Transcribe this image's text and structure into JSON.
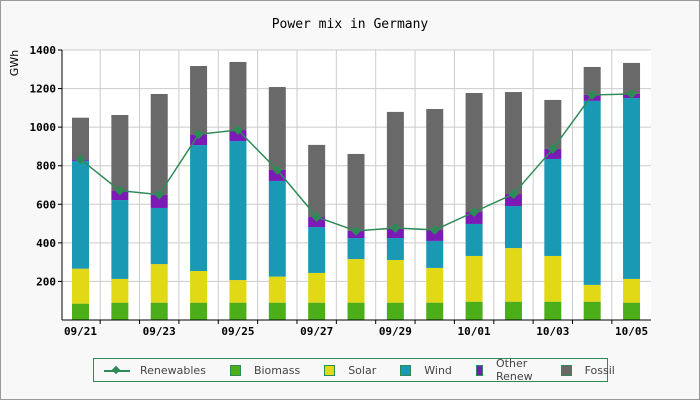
{
  "chart_data": {
    "type": "bar",
    "stacked": true,
    "title": "Power mix in Germany",
    "xlabel": "",
    "ylabel": "GWh",
    "ylim": [
      0,
      1400
    ],
    "yticks": [
      200,
      400,
      600,
      800,
      1000,
      1200,
      1400
    ],
    "categories": [
      "09/21",
      "09/22",
      "09/23",
      "09/24",
      "09/25",
      "09/26",
      "09/27",
      "09/28",
      "09/29",
      "09/30",
      "10/01",
      "10/02",
      "10/03",
      "10/04",
      "10/05"
    ],
    "xtick_labels": [
      "09/21",
      "09/23",
      "09/25",
      "09/27",
      "09/29",
      "10/01",
      "10/03",
      "10/05"
    ],
    "series": [
      {
        "name": "Biomass",
        "color": "#4caf1a",
        "values": [
          85,
          90,
          90,
          90,
          90,
          90,
          90,
          90,
          90,
          90,
          95,
          95,
          95,
          95,
          90
        ]
      },
      {
        "name": "Solar",
        "color": "#e2d916",
        "values": [
          181,
          123,
          200,
          164,
          117,
          135,
          154,
          226,
          221,
          180,
          237,
          278,
          237,
          87,
          123
        ]
      },
      {
        "name": "Wind",
        "color": "#1a99b5",
        "values": [
          559,
          409,
          291,
          653,
          721,
          496,
          238,
          109,
          114,
          140,
          166,
          218,
          503,
          954,
          938
        ]
      },
      {
        "name": "Other Renew",
        "color": "#7b1ab5",
        "values": [
          8,
          49,
          69,
          56,
          57,
          57,
          52,
          37,
          52,
          57,
          62,
          62,
          52,
          31,
          21
        ]
      },
      {
        "name": "Fossil",
        "color": "#696969",
        "values": [
          216,
          392,
          522,
          354,
          353,
          430,
          374,
          399,
          602,
          627,
          617,
          529,
          254,
          145,
          161
        ]
      }
    ],
    "line_series": {
      "name": "Renewables",
      "color": "#2e8b57",
      "values": [
        833,
        671,
        650,
        963,
        985,
        778,
        534,
        462,
        477,
        467,
        560,
        653,
        887,
        1167,
        1172
      ]
    },
    "grid": true,
    "legend": "bottom"
  }
}
